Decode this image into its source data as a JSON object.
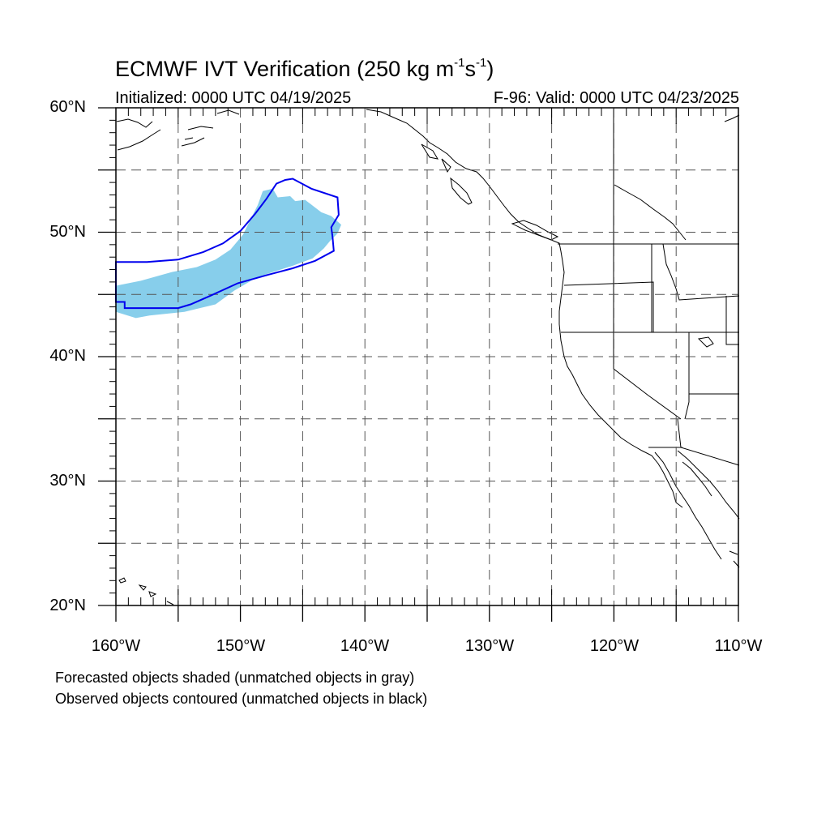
{
  "figure": {
    "title_main": "ECMWF IVT Verification (250 kg m",
    "title_sup1": "-1",
    "title_mid": "s",
    "title_sup2": "-1",
    "title_end": ")",
    "initialized": "Initialized: 0000 UTC 04/19/2025",
    "valid": "F-96: Valid: 0000 UTC 04/23/2025",
    "note_forecast": "Forecasted objects shaded (unmatched objects in gray)",
    "note_observed": "Observed objects contoured (unmatched objects in black)"
  },
  "map": {
    "lon_range": [
      -160,
      -110
    ],
    "lat_range": [
      20,
      60
    ],
    "lat_labels": [
      "60°N",
      "50°N",
      "40°N",
      "30°N",
      "20°N"
    ],
    "lon_labels": [
      "160°W",
      "150°W",
      "140°W",
      "130°W",
      "120°W",
      "110°W"
    ],
    "grid_lons": [
      -155,
      -150,
      -145,
      -140,
      -135,
      -130,
      -125,
      -120,
      -115
    ],
    "grid_lats": [
      55,
      50,
      45,
      40,
      35,
      30,
      25
    ],
    "gridlines": "dashed",
    "colors": {
      "forecast_fill": "#87ceeb",
      "observed_contour": "#0000ee",
      "coastline": "#000000",
      "grid": "#555555"
    },
    "forecast_object": {
      "label": "Forecasted object (matched, shaded)",
      "polygon": [
        [
          -160,
          45.7
        ],
        [
          -158,
          46.1
        ],
        [
          -155.5,
          46.8
        ],
        [
          -153.5,
          47.2
        ],
        [
          -152,
          47.8
        ],
        [
          -150.8,
          48.6
        ],
        [
          -149.8,
          49.8
        ],
        [
          -149.2,
          51
        ],
        [
          -148.6,
          52.2
        ],
        [
          -148.2,
          53.3
        ],
        [
          -147.4,
          53.5
        ],
        [
          -147,
          52.8
        ],
        [
          -146,
          52.9
        ],
        [
          -145.6,
          52.5
        ],
        [
          -144.8,
          52.6
        ],
        [
          -143.5,
          51.6
        ],
        [
          -142.7,
          51.3
        ],
        [
          -141.9,
          50.6
        ],
        [
          -142.2,
          49.9
        ],
        [
          -142.8,
          49.3
        ],
        [
          -143.3,
          48.7
        ],
        [
          -144.2,
          47.9
        ],
        [
          -145.8,
          47.3
        ],
        [
          -147.4,
          46.8
        ],
        [
          -148.8,
          46.3
        ],
        [
          -150.5,
          45.3
        ],
        [
          -152,
          44.2
        ],
        [
          -154.5,
          43.6
        ],
        [
          -157.3,
          43.3
        ],
        [
          -158.4,
          43.1
        ],
        [
          -160,
          43.6
        ]
      ]
    },
    "observed_object": {
      "label": "Observed object (matched, contour)",
      "polygon": [
        [
          -160,
          47.6
        ],
        [
          -157.5,
          47.6
        ],
        [
          -155,
          47.8
        ],
        [
          -153,
          48.4
        ],
        [
          -151.4,
          49.1
        ],
        [
          -150,
          50.1
        ],
        [
          -148.8,
          51.5
        ],
        [
          -147.9,
          52.7
        ],
        [
          -147.1,
          53.9
        ],
        [
          -146.4,
          54.2
        ],
        [
          -145.8,
          54.3
        ],
        [
          -144.3,
          53.5
        ],
        [
          -142.2,
          52.8
        ],
        [
          -142.1,
          51.4
        ],
        [
          -142.7,
          50.4
        ],
        [
          -142.6,
          49.6
        ],
        [
          -142.5,
          48.5
        ],
        [
          -144,
          47.7
        ],
        [
          -145.8,
          47.1
        ],
        [
          -147.7,
          46.6
        ],
        [
          -150.2,
          45.9
        ],
        [
          -152.4,
          44.9
        ],
        [
          -154,
          44.2
        ],
        [
          -155,
          43.9
        ],
        [
          -159.3,
          43.9
        ],
        [
          -159.3,
          44.4
        ],
        [
          -160,
          44.4
        ]
      ]
    }
  }
}
